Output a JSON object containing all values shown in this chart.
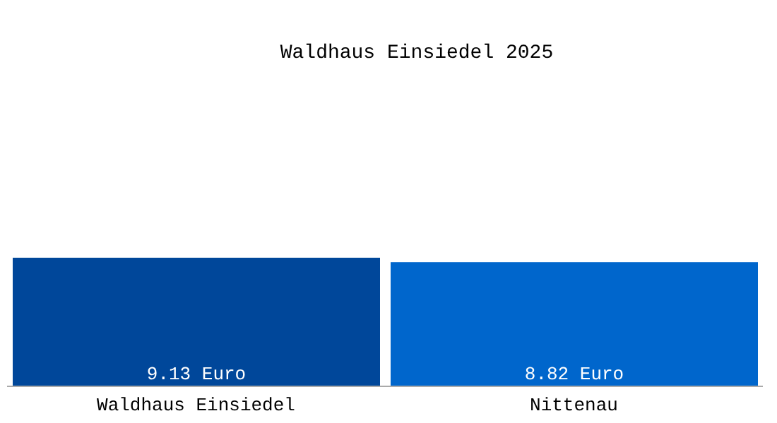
{
  "chart_data": {
    "type": "bar",
    "title": "Waldhaus Einsiedel 2025",
    "categories": [
      "Waldhaus Einsiedel",
      "Nittenau"
    ],
    "values": [
      9.13,
      8.82
    ],
    "colors": [
      "#00479a",
      "#0066cc"
    ],
    "value_labels": [
      "9.13 Euro",
      "8.82 Euro"
    ]
  }
}
